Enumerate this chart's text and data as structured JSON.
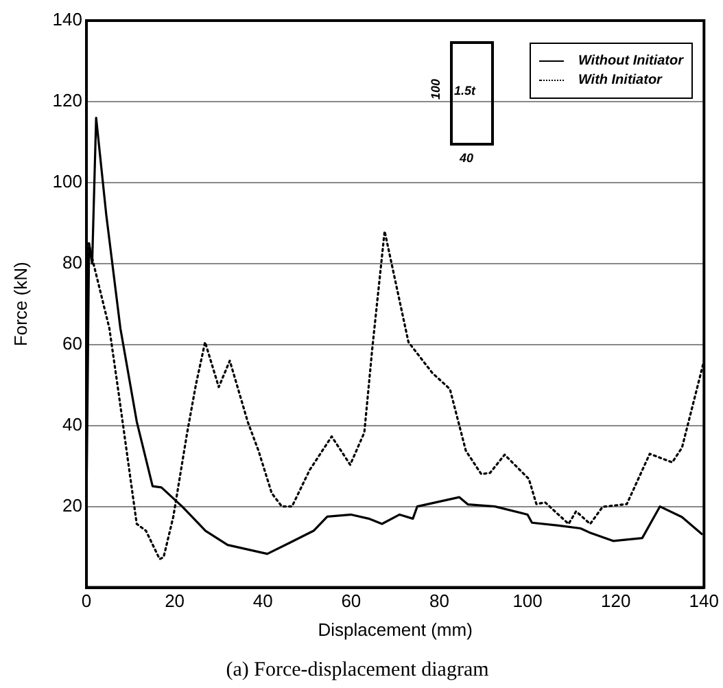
{
  "chart_data": {
    "type": "line",
    "title": "(a) Force-displacement diagram",
    "xlabel": "Displacement (mm)",
    "ylabel": "Force (kN)",
    "annotations": [
      "100",
      "1.5t",
      "40"
    ],
    "xlim": [
      0,
      140
    ],
    "xticks": [
      0,
      20,
      40,
      60,
      80,
      100,
      120,
      140
    ],
    "ylim": [
      0,
      140
    ],
    "yticks": [
      {
        "value": 0,
        "label": null
      },
      20,
      40,
      60,
      80,
      100,
      120,
      140
    ],
    "grid": "y",
    "legend": "top right",
    "marker": "none",
    "series": [
      {
        "name": "Without Initiator",
        "color": "#000000",
        "line_style": "solid",
        "x": [
          0,
          0.6,
          1.3,
          2.2,
          4.5,
          7.7,
          11.4,
          15,
          17,
          21.7,
          27,
          32,
          41,
          46,
          51.5,
          54.6,
          60,
          64,
          67,
          71,
          74,
          75,
          84.5,
          86.5,
          92.6,
          100,
          101,
          107,
          112,
          114,
          119.4,
          126,
          130,
          135,
          139.5
        ],
        "values": [
          20,
          85,
          80,
          116,
          92,
          64,
          41,
          25,
          24.7,
          20,
          14,
          10.5,
          8.3,
          11,
          14,
          17.5,
          18,
          17,
          15.7,
          18,
          17,
          20,
          22.3,
          20.5,
          20,
          18,
          16,
          15.3,
          14.6,
          13.6,
          11.5,
          12.2,
          20,
          17.4,
          13.2
        ]
      },
      {
        "name": "With Initiator",
        "color": "#000000",
        "line_style": "dotted",
        "x": [
          0,
          0.5,
          1.6,
          5.2,
          7.3,
          11.4,
          13.5,
          16.6,
          17.5,
          19.7,
          22.8,
          24.8,
          26.9,
          30,
          32.5,
          36.6,
          39,
          42,
          44.3,
          46.6,
          50.6,
          55.6,
          59.8,
          63,
          64.8,
          67.6,
          73,
          78.4,
          82.4,
          86,
          89.5,
          91.5,
          94.8,
          100.3,
          102,
          104,
          109.3,
          111,
          114.2,
          117,
          122.5,
          127.7,
          132.8,
          135,
          140
        ],
        "values": [
          40,
          85,
          80,
          64,
          48,
          15.7,
          14,
          7,
          7.5,
          17.5,
          38,
          50,
          60.6,
          49.5,
          56,
          40.8,
          33.8,
          23.3,
          20,
          20,
          29,
          37.3,
          30.3,
          38.3,
          59,
          88,
          60.6,
          53,
          49,
          33.8,
          28,
          28.3,
          32.8,
          26.8,
          20.6,
          21,
          15.7,
          18.8,
          15.7,
          19.9,
          20.6,
          33,
          30.9,
          34.5,
          56
        ]
      }
    ]
  }
}
